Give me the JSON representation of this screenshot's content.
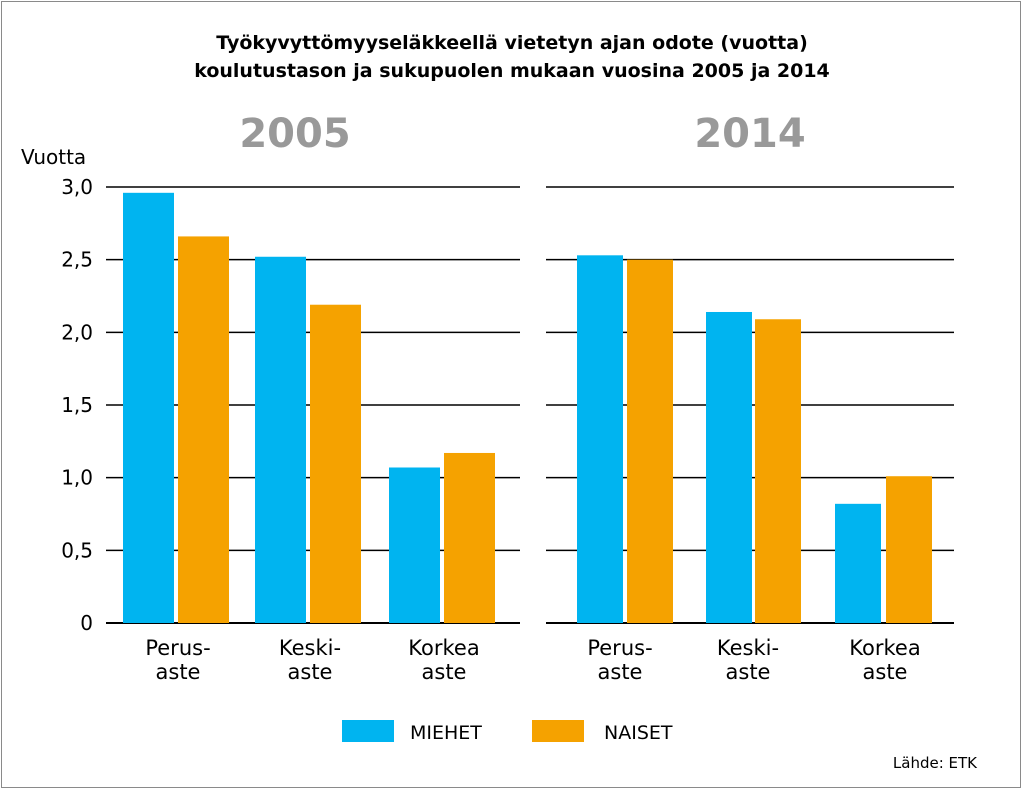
{
  "chart_data": {
    "type": "bar",
    "title": "Työkyvyttömyyseläkkeellä vietetyn ajan odote (vuotta)",
    "subtitle": "koulutustason ja sukupuolen mukaan vuosina 2005 ja 2014",
    "ylabel": "Vuotta",
    "ylim": [
      0,
      3.0
    ],
    "yticks": [
      "0",
      "0,5",
      "1,0",
      "1,5",
      "2,0",
      "2,5",
      "3,0"
    ],
    "grid": true,
    "legend_position": "bottom",
    "source": "Lähde: ETK",
    "categories": [
      [
        "Perus-",
        "aste"
      ],
      [
        "Keski-",
        "aste"
      ],
      [
        "Korkea",
        "aste"
      ]
    ],
    "series_colors": {
      "MIEHET": "#00b4f0",
      "NAISET": "#f5a200"
    },
    "panels": [
      {
        "year": "2005",
        "series": [
          {
            "name": "MIEHET",
            "values": [
              2.96,
              2.52,
              1.07
            ]
          },
          {
            "name": "NAISET",
            "values": [
              2.66,
              2.19,
              1.17
            ]
          }
        ]
      },
      {
        "year": "2014",
        "series": [
          {
            "name": "MIEHET",
            "values": [
              2.53,
              2.14,
              0.82
            ]
          },
          {
            "name": "NAISET",
            "values": [
              2.5,
              2.09,
              1.01
            ]
          }
        ]
      }
    ]
  }
}
